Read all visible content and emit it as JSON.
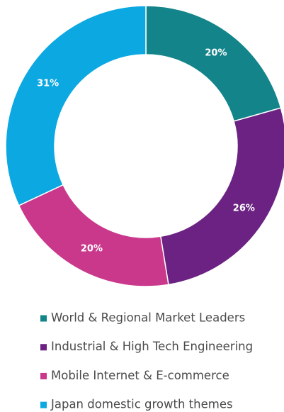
{
  "chart_data": {
    "type": "pie",
    "donut": true,
    "categories": [
      "World & Regional Market Leaders",
      "Industrial & High Tech Engineering",
      "Mobile Internet & E-commerce",
      "Japan domestic growth themes"
    ],
    "values": [
      20,
      26,
      20,
      31
    ],
    "value_labels": [
      "20%",
      "26%",
      "20%",
      "31%"
    ],
    "colors": [
      "#13858a",
      "#6b2282",
      "#c9388b",
      "#0ba8e2"
    ]
  }
}
